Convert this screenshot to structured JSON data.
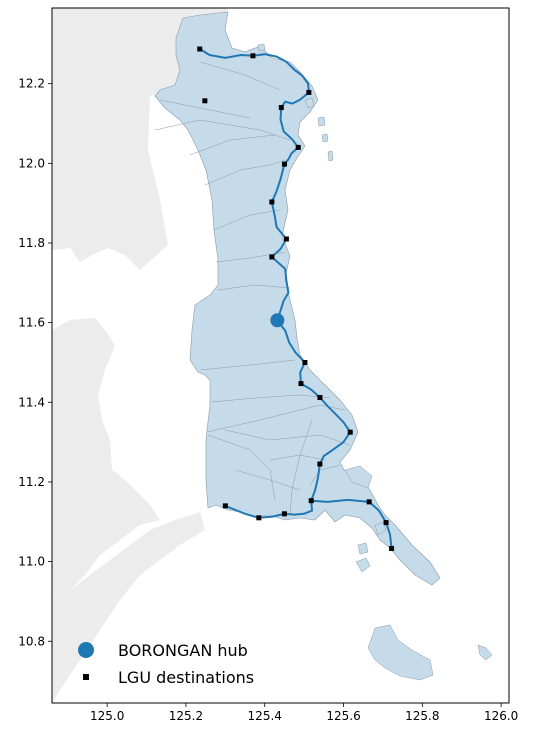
{
  "colors": {
    "land_background": "#ececec",
    "province_fill": "#c6dbea",
    "province_edge": "#8a9aa8",
    "route": "#1f77b4",
    "hub": "#1f77b4",
    "destination": "#000000",
    "frame": "#000000"
  },
  "map": {
    "x_range": [
      124.86,
      126.02
    ],
    "y_range": [
      10.645,
      12.39
    ],
    "x_ticks": [
      "125.0",
      "125.2",
      "125.4",
      "125.6",
      "125.8",
      "126.0"
    ],
    "y_ticks": [
      "10.8",
      "11.0",
      "11.2",
      "11.4",
      "11.6",
      "11.8",
      "12.0",
      "12.2"
    ],
    "hub": {
      "name": "BORONGAN hub",
      "lon": 125.432,
      "lat": 11.606
    },
    "destinations": [
      [
        125.235,
        12.287
      ],
      [
        125.37,
        12.27
      ],
      [
        125.512,
        12.178
      ],
      [
        125.248,
        12.157
      ],
      [
        125.442,
        12.14
      ],
      [
        125.485,
        12.04
      ],
      [
        125.45,
        11.998
      ],
      [
        125.418,
        11.903
      ],
      [
        125.455,
        11.81
      ],
      [
        125.418,
        11.765
      ],
      [
        125.502,
        11.5
      ],
      [
        125.492,
        11.447
      ],
      [
        125.54,
        11.412
      ],
      [
        125.617,
        11.325
      ],
      [
        125.54,
        11.245
      ],
      [
        125.518,
        11.153
      ],
      [
        125.665,
        11.15
      ],
      [
        125.708,
        11.098
      ],
      [
        125.722,
        11.033
      ],
      [
        125.3,
        11.14
      ],
      [
        125.385,
        11.11
      ],
      [
        125.45,
        11.12
      ]
    ],
    "route": [
      [
        125.235,
        12.287
      ],
      [
        125.26,
        12.272
      ],
      [
        125.3,
        12.265
      ],
      [
        125.34,
        12.272
      ],
      [
        125.37,
        12.27
      ],
      [
        125.4,
        12.274
      ],
      [
        125.43,
        12.268
      ],
      [
        125.455,
        12.255
      ],
      [
        125.475,
        12.235
      ],
      [
        125.495,
        12.22
      ],
      [
        125.51,
        12.2
      ],
      [
        125.512,
        12.178
      ],
      [
        125.49,
        12.16
      ],
      [
        125.47,
        12.15
      ],
      [
        125.452,
        12.155
      ],
      [
        125.442,
        12.14
      ],
      [
        125.44,
        12.11
      ],
      [
        125.448,
        12.08
      ],
      [
        125.47,
        12.06
      ],
      [
        125.485,
        12.04
      ],
      [
        125.468,
        12.025
      ],
      [
        125.46,
        12.01
      ],
      [
        125.45,
        11.998
      ],
      [
        125.44,
        11.96
      ],
      [
        125.43,
        11.93
      ],
      [
        125.418,
        11.903
      ],
      [
        125.425,
        11.87
      ],
      [
        125.43,
        11.84
      ],
      [
        125.455,
        11.81
      ],
      [
        125.44,
        11.785
      ],
      [
        125.418,
        11.765
      ],
      [
        125.435,
        11.75
      ],
      [
        125.452,
        11.735
      ],
      [
        125.455,
        11.705
      ],
      [
        125.46,
        11.675
      ],
      [
        125.448,
        11.655
      ],
      [
        125.44,
        11.63
      ],
      [
        125.432,
        11.606
      ],
      [
        125.452,
        11.58
      ],
      [
        125.462,
        11.55
      ],
      [
        125.478,
        11.525
      ],
      [
        125.502,
        11.5
      ],
      [
        125.49,
        11.475
      ],
      [
        125.492,
        11.447
      ],
      [
        125.518,
        11.432
      ],
      [
        125.54,
        11.412
      ],
      [
        125.56,
        11.39
      ],
      [
        125.58,
        11.37
      ],
      [
        125.6,
        11.35
      ],
      [
        125.617,
        11.325
      ],
      [
        125.6,
        11.3
      ],
      [
        125.572,
        11.28
      ],
      [
        125.55,
        11.265
      ],
      [
        125.54,
        11.245
      ],
      [
        125.535,
        11.21
      ],
      [
        125.528,
        11.18
      ],
      [
        125.518,
        11.153
      ],
      [
        125.52,
        11.128
      ],
      [
        125.5,
        11.12
      ],
      [
        125.475,
        11.118
      ],
      [
        125.45,
        11.12
      ],
      [
        125.42,
        11.113
      ],
      [
        125.385,
        11.11
      ],
      [
        125.35,
        11.12
      ],
      [
        125.32,
        11.132
      ],
      [
        125.3,
        11.14
      ]
    ],
    "route_branch_east": [
      [
        125.518,
        11.153
      ],
      [
        125.56,
        11.15
      ],
      [
        125.61,
        11.155
      ],
      [
        125.645,
        11.152
      ],
      [
        125.665,
        11.15
      ],
      [
        125.69,
        11.128
      ],
      [
        125.708,
        11.098
      ],
      [
        125.718,
        11.068
      ],
      [
        125.722,
        11.033
      ]
    ]
  },
  "legend": {
    "hub_label": "BORONGAN hub",
    "destinations_label": "LGU destinations"
  }
}
